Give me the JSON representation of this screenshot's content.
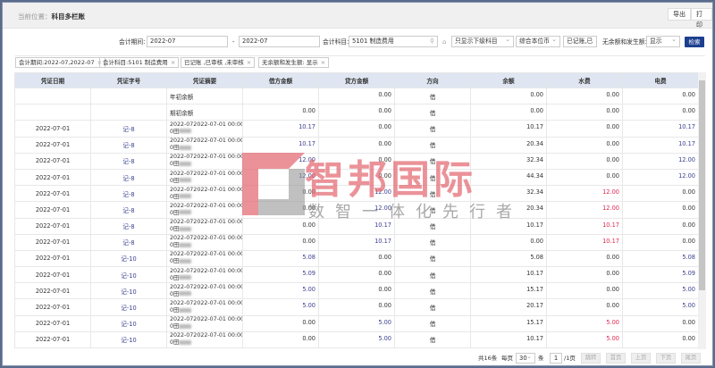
{
  "header": {
    "crumb_label": "当前位置：",
    "crumb_page": "科目多栏账",
    "export": "导出",
    "print": "打印"
  },
  "filters": {
    "period_label": "会计期间:",
    "period_from": "2022-07",
    "dash": "-",
    "period_to": "2022-07",
    "subject_label": "会计科目:",
    "subject_value": "5101  制造费用",
    "level": "只显示下级科目",
    "currency": "综合本位币",
    "status": "已记账,已",
    "zero_label": "无余额和发生额:",
    "zero_value": "显示",
    "search": "检索"
  },
  "tags": [
    "会计期间:2022-07,2022-07",
    "会计科目:5101  制造费用",
    "已记账 ,已审核 ,未审核",
    "无余额和发生额: 显示"
  ],
  "columns": [
    "凭证日期",
    "凭证字号",
    "凭证摘要",
    "借方金额",
    "贷方金额",
    "方向",
    "余额",
    "水费",
    "电费"
  ],
  "summary_line": "2022-072022-07-01 00:00:0",
  "summary_line2": "0田",
  "rows": [
    {
      "date": "",
      "no": "",
      "summary": "年初余额",
      "debit": "",
      "credit": "0.00",
      "dir": "借",
      "balance": "0.00",
      "water": "0.00",
      "elec": "0.00"
    },
    {
      "date": "",
      "no": "",
      "summary": "期初余额",
      "debit": "0.00",
      "credit": "0.00",
      "dir": "借",
      "balance": "0.00",
      "water": "0.00",
      "elec": "0.00"
    },
    {
      "date": "2022-07-01",
      "no": "记-8",
      "debit": "10.17",
      "credit": "0.00",
      "dir": "借",
      "balance": "10.17",
      "water": "0.00",
      "elec": "10.17"
    },
    {
      "date": "2022-07-01",
      "no": "记-8",
      "debit": "10.17",
      "credit": "0.00",
      "dir": "借",
      "balance": "20.34",
      "water": "0.00",
      "elec": "10.17"
    },
    {
      "date": "2022-07-01",
      "no": "记-8",
      "debit": "12.00",
      "credit": "0.00",
      "dir": "借",
      "balance": "32.34",
      "water": "0.00",
      "elec": "12.00"
    },
    {
      "date": "2022-07-01",
      "no": "记-8",
      "debit": "12.00",
      "credit": "0.00",
      "dir": "借",
      "balance": "44.34",
      "water": "0.00",
      "elec": "12.00"
    },
    {
      "date": "2022-07-01",
      "no": "记-8",
      "debit": "0.00",
      "credit": "12.00",
      "dir": "借",
      "balance": "32.34",
      "water": "12.00",
      "elec": "0.00"
    },
    {
      "date": "2022-07-01",
      "no": "记-8",
      "debit": "0.00",
      "credit": "12.00",
      "dir": "借",
      "balance": "20.34",
      "water": "12.00",
      "elec": "0.00"
    },
    {
      "date": "2022-07-01",
      "no": "记-8",
      "debit": "0.00",
      "credit": "10.17",
      "dir": "借",
      "balance": "10.17",
      "water": "10.17",
      "elec": "0.00"
    },
    {
      "date": "2022-07-01",
      "no": "记-8",
      "debit": "0.00",
      "credit": "10.17",
      "dir": "借",
      "balance": "0.00",
      "water": "10.17",
      "elec": "0.00"
    },
    {
      "date": "2022-07-01",
      "no": "记-10",
      "debit": "5.08",
      "credit": "0.00",
      "dir": "借",
      "balance": "5.08",
      "water": "0.00",
      "elec": "5.08"
    },
    {
      "date": "2022-07-01",
      "no": "记-10",
      "debit": "5.09",
      "credit": "0.00",
      "dir": "借",
      "balance": "10.17",
      "water": "0.00",
      "elec": "5.09"
    },
    {
      "date": "2022-07-01",
      "no": "记-10",
      "debit": "5.00",
      "credit": "0.00",
      "dir": "借",
      "balance": "15.17",
      "water": "0.00",
      "elec": "5.00"
    },
    {
      "date": "2022-07-01",
      "no": "记-10",
      "debit": "5.00",
      "credit": "0.00",
      "dir": "借",
      "balance": "20.17",
      "water": "0.00",
      "elec": "5.00"
    },
    {
      "date": "2022-07-01",
      "no": "记-10",
      "debit": "0.00",
      "credit": "5.00",
      "dir": "借",
      "balance": "15.17",
      "water": "5.00",
      "elec": "0.00"
    },
    {
      "date": "2022-07-01",
      "no": "记-10",
      "debit": "0.00",
      "credit": "5.00",
      "dir": "借",
      "balance": "10.17",
      "water": "5.00",
      "elec": "0.00"
    }
  ],
  "pager": {
    "total": "共16条",
    "per_page_label": "每页",
    "per_page": "30",
    "unit": "条",
    "page": "1",
    "pages": "/1页",
    "jump": "跳转",
    "first": "首页",
    "prev": "上页",
    "next": "下页",
    "last": "尾页"
  },
  "watermark": {
    "name": "智邦国际",
    "slogan": "数智一体化先行者"
  },
  "colors": {
    "accent": "#1d3f8f",
    "link": "#3a3f8f",
    "negative": "#e0284f",
    "header_bg": "#dfe6f1"
  }
}
